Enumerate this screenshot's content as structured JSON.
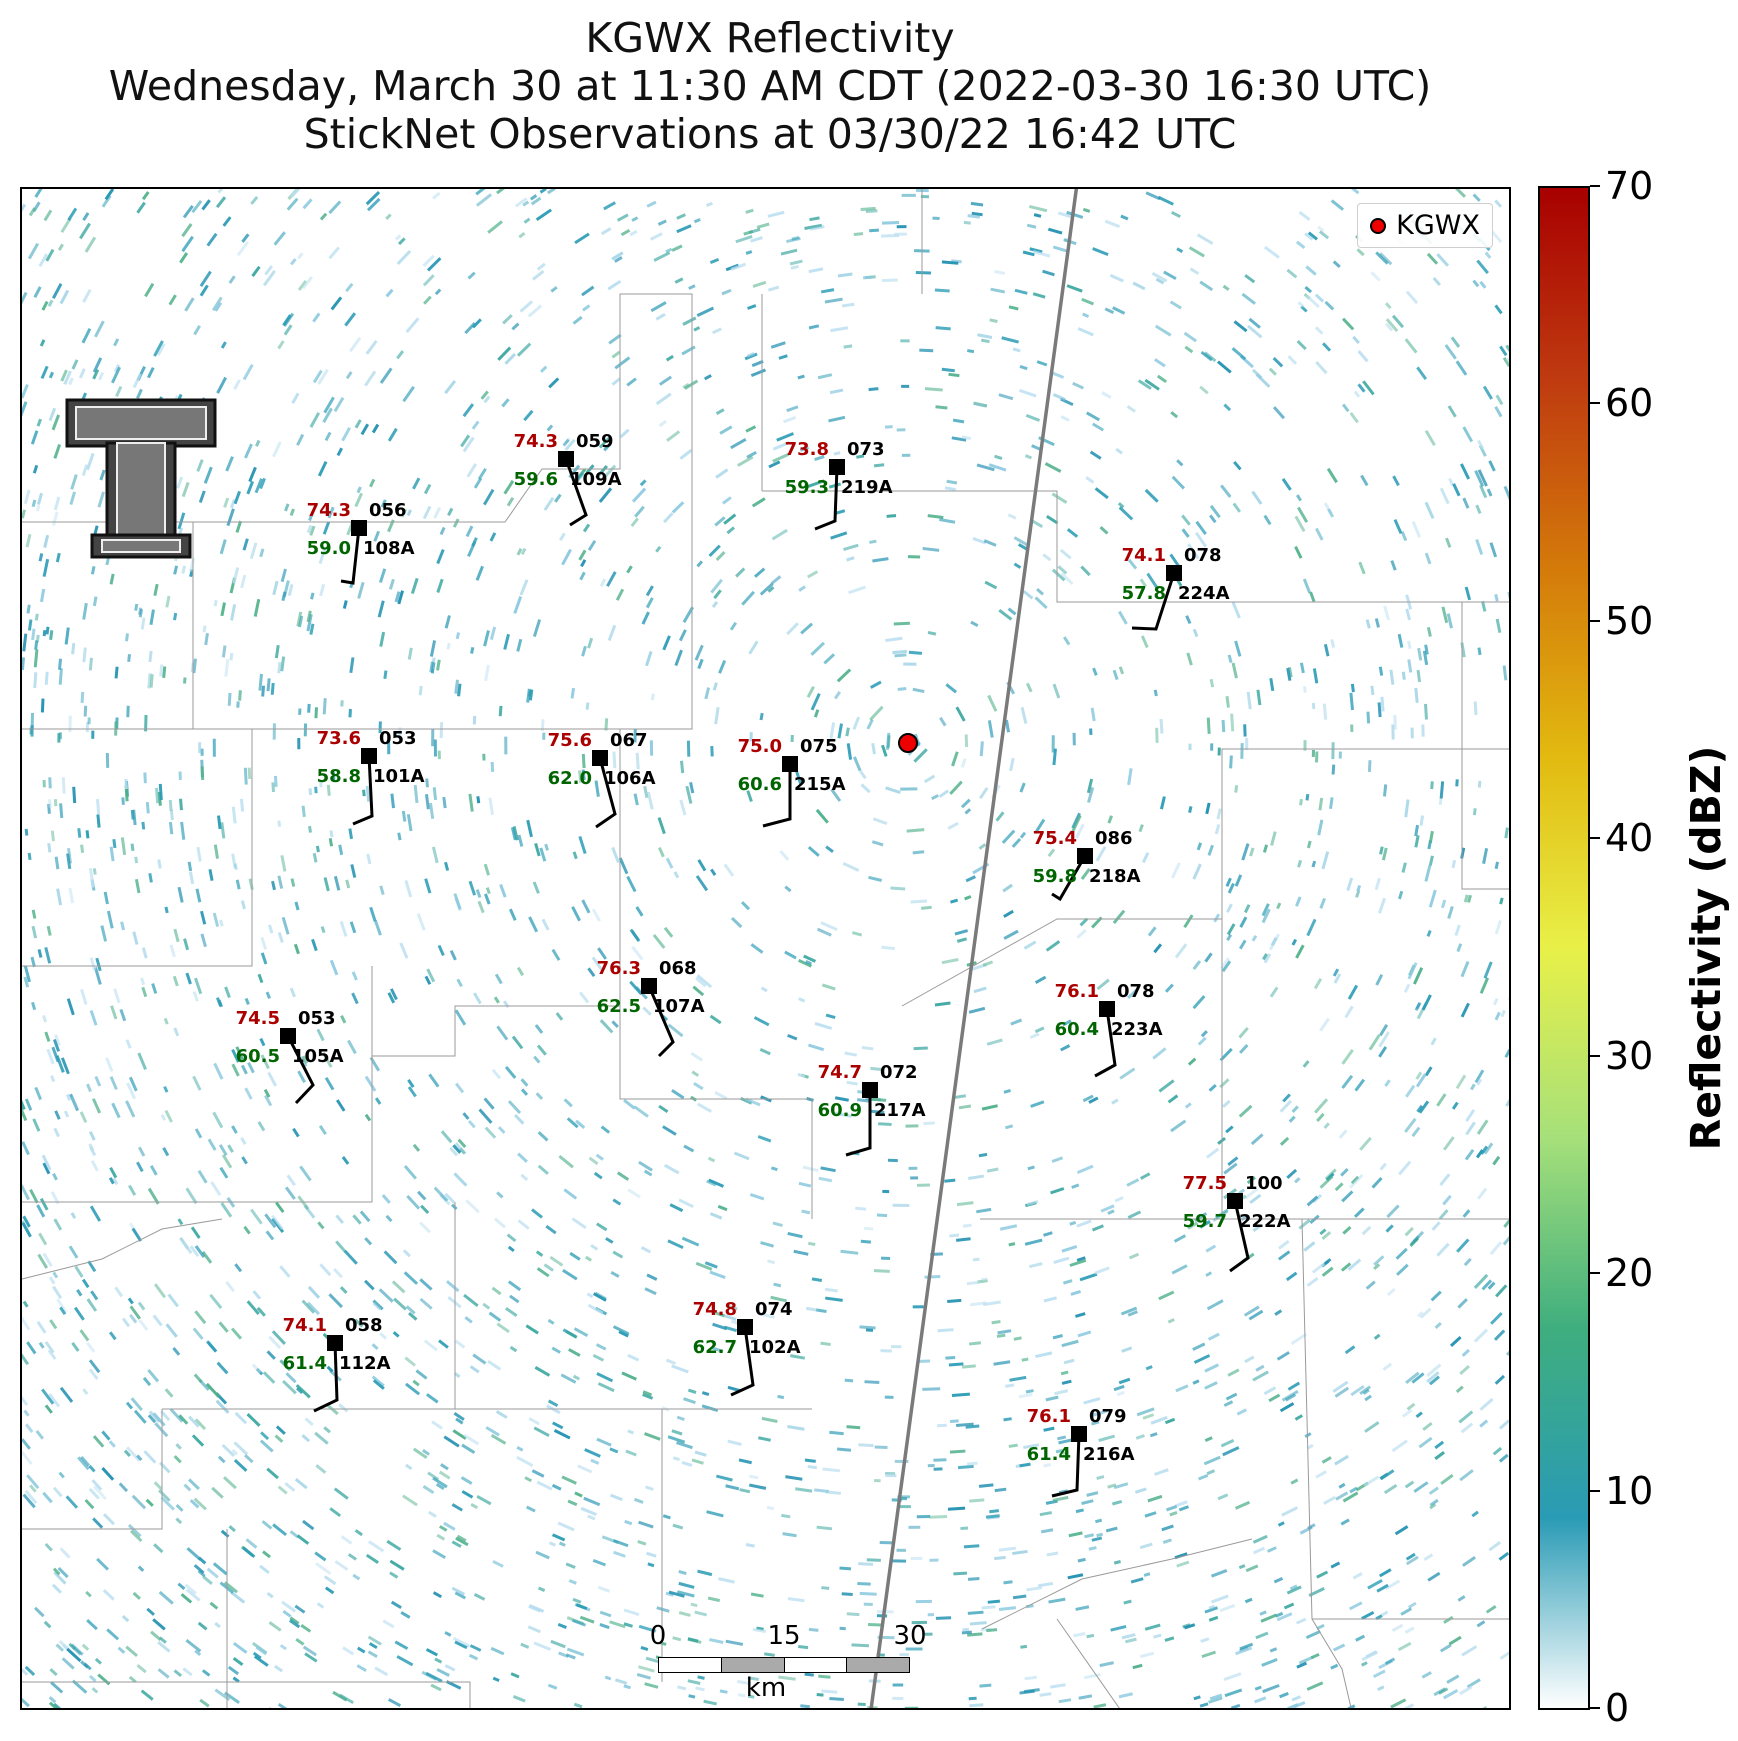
{
  "title": {
    "line1": "KGWX Reflectivity",
    "line2": "Wednesday, March 30 at 11:30 AM CDT (2022-03-30 16:30 UTC)",
    "line3": "StickNet Observations at 03/30/22 16:42 UTC"
  },
  "legend": {
    "label": "KGWX",
    "marker_color": "#ee0000"
  },
  "radar": {
    "name": "KGWX"
  },
  "scalebar": {
    "ticks": [
      "0",
      "15",
      "30"
    ],
    "unit": "km"
  },
  "colorbar": {
    "label": "Reflectivity (dBZ)",
    "ticks": [
      "0",
      "10",
      "20",
      "30",
      "40",
      "50",
      "60",
      "70"
    ],
    "min": 0,
    "max": 70,
    "stops": [
      "#ffffff",
      "#2a9bb5",
      "#3fae7e",
      "#a6e07a",
      "#e8f048",
      "#e2ba10",
      "#d47a0a",
      "#bf3a10",
      "#a80000"
    ]
  },
  "colors": {
    "temperature": "#aa0000",
    "dewpoint": "#006400",
    "station": "#000000"
  },
  "stations": [
    {
      "id": "109A",
      "temp": "74.3",
      "dew": "59.6",
      "dir": "059"
    },
    {
      "id": "219A",
      "temp": "73.8",
      "dew": "59.3",
      "dir": "073"
    },
    {
      "id": "108A",
      "temp": "74.3",
      "dew": "59.0",
      "dir": "056"
    },
    {
      "id": "224A",
      "temp": "74.1",
      "dew": "57.8",
      "dir": "078"
    },
    {
      "id": "101A",
      "temp": "73.6",
      "dew": "58.8",
      "dir": "053"
    },
    {
      "id": "106A",
      "temp": "75.6",
      "dew": "62.0",
      "dir": "067"
    },
    {
      "id": "215A",
      "temp": "75.0",
      "dew": "60.6",
      "dir": "075"
    },
    {
      "id": "218A",
      "temp": "75.4",
      "dew": "59.8",
      "dir": "086"
    },
    {
      "id": "107A",
      "temp": "76.3",
      "dew": "62.5",
      "dir": "068"
    },
    {
      "id": "105A",
      "temp": "74.5",
      "dew": "60.5",
      "dir": "053"
    },
    {
      "id": "223A",
      "temp": "76.1",
      "dew": "60.4",
      "dir": "078"
    },
    {
      "id": "217A",
      "temp": "74.7",
      "dew": "60.9",
      "dir": "072"
    },
    {
      "id": "222A",
      "temp": "77.5",
      "dew": "59.7",
      "dir": "100"
    },
    {
      "id": "112A",
      "temp": "74.1",
      "dew": "61.4",
      "dir": "058"
    },
    {
      "id": "102A",
      "temp": "74.8",
      "dew": "62.7",
      "dir": "074"
    },
    {
      "id": "216A",
      "temp": "76.1",
      "dew": "61.4",
      "dir": "079"
    }
  ]
}
